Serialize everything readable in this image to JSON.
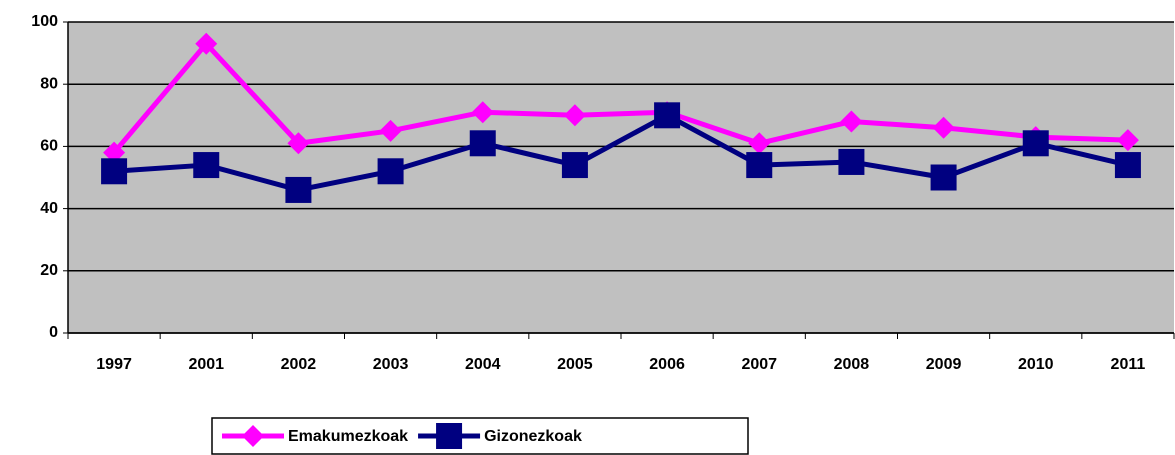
{
  "chart_data": {
    "type": "line",
    "categories": [
      "1997",
      "2001",
      "2002",
      "2003",
      "2004",
      "2005",
      "2006",
      "2007",
      "2008",
      "2009",
      "2010",
      "2011"
    ],
    "series": [
      {
        "name": "Emakumezkoak",
        "color": "#ff00ff",
        "marker": "diamond",
        "values": [
          58,
          93,
          61,
          65,
          71,
          70,
          71,
          61,
          68,
          66,
          63,
          62
        ]
      },
      {
        "name": "Gizonezkoak",
        "color": "#000080",
        "marker": "square",
        "values": [
          52,
          54,
          46,
          52,
          61,
          54,
          70,
          54,
          55,
          50,
          61,
          54
        ]
      }
    ],
    "ylim": [
      0,
      100
    ],
    "yticks": [
      0,
      20,
      40,
      60,
      80,
      100
    ],
    "grid": true,
    "plot_background": "#c0c0c0"
  }
}
